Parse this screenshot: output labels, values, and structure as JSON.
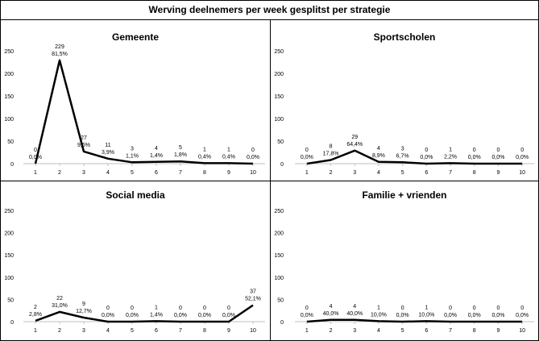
{
  "title": "Werving deelnemers per week gesplitst per strategie",
  "chart_data": [
    {
      "type": "line",
      "title": "Gemeente",
      "x": [
        "1",
        "2",
        "3",
        "4",
        "5",
        "6",
        "7",
        "8",
        "9",
        "10"
      ],
      "values": [
        0,
        229,
        27,
        11,
        3,
        4,
        5,
        1,
        1,
        0
      ],
      "percentages": [
        "0,0%",
        "81,5%",
        "9,6%",
        "3,9%",
        "1,1%",
        "1,4%",
        "1,8%",
        "0,4%",
        "0,4%",
        "0,0%"
      ],
      "yticks": [
        0,
        50,
        100,
        150,
        200,
        250
      ],
      "ylim": [
        0,
        250
      ],
      "grid": false
    },
    {
      "type": "line",
      "title": "Sportscholen",
      "x": [
        "1",
        "2",
        "3",
        "4",
        "5",
        "6",
        "7",
        "8",
        "9",
        "10"
      ],
      "values": [
        0,
        8,
        29,
        4,
        3,
        0,
        1,
        0,
        0,
        0
      ],
      "percentages": [
        "0,0%",
        "17,8%",
        "64,4%",
        "8,9%",
        "6,7%",
        "0,0%",
        "2,2%",
        "0,0%",
        "0,0%",
        "0,0%"
      ],
      "yticks": [
        0,
        50,
        100,
        150,
        200,
        250
      ],
      "ylim": [
        0,
        250
      ],
      "grid": false
    },
    {
      "type": "line",
      "title": "Social media",
      "x": [
        "1",
        "2",
        "3",
        "4",
        "5",
        "6",
        "7",
        "8",
        "9",
        "10"
      ],
      "values": [
        2,
        22,
        9,
        0,
        0,
        1,
        0,
        0,
        0,
        37
      ],
      "percentages": [
        "2,8%",
        "31,0%",
        "12,7%",
        "0,0%",
        "0,0%",
        "1,4%",
        "0,0%",
        "0,0%",
        "0,0%",
        "52,1%"
      ],
      "yticks": [
        0,
        50,
        100,
        150,
        200,
        250
      ],
      "ylim": [
        0,
        250
      ],
      "grid": false
    },
    {
      "type": "line",
      "title": "Familie + vrienden",
      "x": [
        "1",
        "2",
        "3",
        "4",
        "5",
        "6",
        "7",
        "8",
        "9",
        "10"
      ],
      "values": [
        0,
        4,
        4,
        1,
        0,
        1,
        0,
        0,
        0,
        0
      ],
      "percentages": [
        "0,0%",
        "40,0%",
        "40,0%",
        "10,0%",
        "0,0%",
        "10,0%",
        "0,0%",
        "0,0%",
        "0,0%",
        "0,0%"
      ],
      "yticks": [
        0,
        50,
        100,
        150,
        200,
        250
      ],
      "ylim": [
        0,
        250
      ],
      "grid": false
    }
  ]
}
